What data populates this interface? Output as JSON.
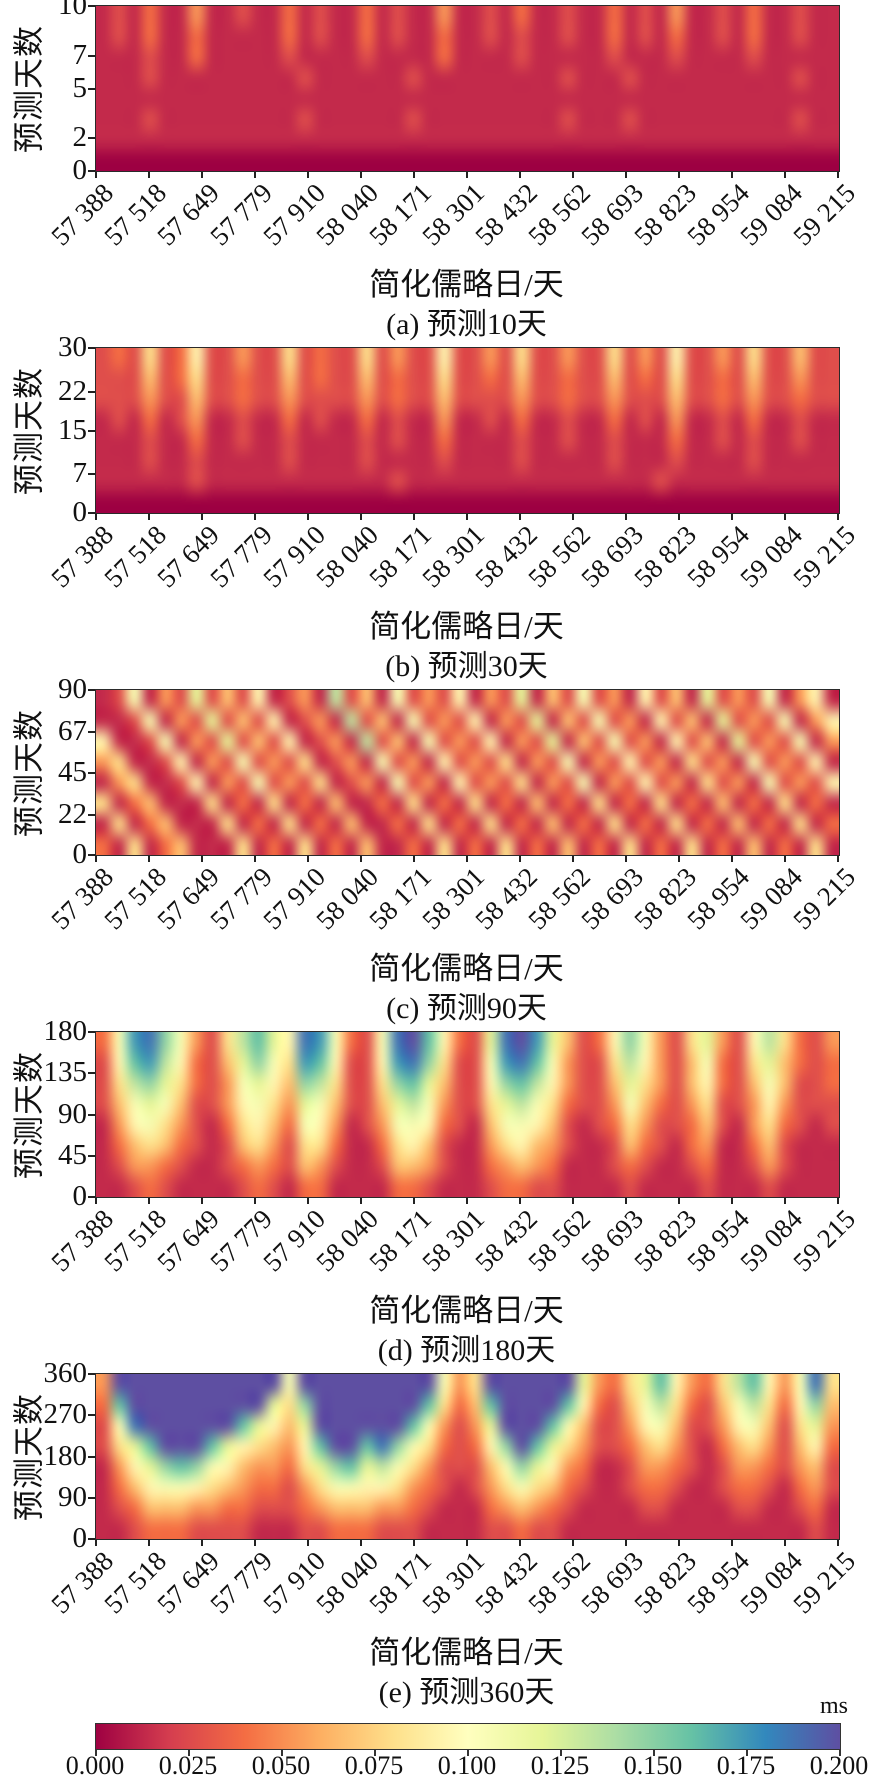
{
  "chart_data": {
    "type": "heatmap",
    "figure_kind": "five stacked prediction-error heatmap panels sharing one colorbar",
    "value_unit": "ms",
    "value_range": [
      0.0,
      0.2
    ],
    "colormap": "Spectral",
    "colormap_stops": [
      {
        "t": 0.0,
        "color": "#9e0142"
      },
      {
        "t": 0.1,
        "color": "#d53e4f"
      },
      {
        "t": 0.2,
        "color": "#f46d43"
      },
      {
        "t": 0.3,
        "color": "#fdae61"
      },
      {
        "t": 0.4,
        "color": "#fee08b"
      },
      {
        "t": 0.5,
        "color": "#ffffbf"
      },
      {
        "t": 0.6,
        "color": "#e6f598"
      },
      {
        "t": 0.7,
        "color": "#abdda4"
      },
      {
        "t": 0.8,
        "color": "#66c2a5"
      },
      {
        "t": 0.9,
        "color": "#3288bd"
      },
      {
        "t": 1.0,
        "color": "#5e4fa2"
      }
    ],
    "x": {
      "label": "简化儒略日/天",
      "range_mjd": [
        57388,
        59215
      ],
      "tick_labels": [
        "57 388",
        "57 518",
        "57 649",
        "57 779",
        "57 910",
        "58 040",
        "58 171",
        "58 301",
        "58 432",
        "58 562",
        "58 693",
        "58 823",
        "58 954",
        "59 084",
        "59 215"
      ]
    },
    "y": {
      "label": "预测天数"
    },
    "colorbar": {
      "unit": "ms",
      "tick_labels": [
        "0.000",
        "0.025",
        "0.050",
        "0.075",
        "0.100",
        "0.125",
        "0.150",
        "0.175",
        "0.200"
      ]
    },
    "grid_encoding": {
      "scheme": "each row is a 48-char hex string; digit 0-F maps linearly to 0.000-0.200 ms; row 0 = top of panel (max prediction days), row 7 = bottom (0 days)",
      "cols": 48,
      "rows": 8
    },
    "panels": [
      {
        "key": "a",
        "caption": "(a) 预测10天",
        "horizon_days": 10,
        "y_max": 10,
        "y_tick_values": [
          0,
          2,
          5,
          7,
          10
        ],
        "rows": [
          "121311411211312113121141121311211312141121311211",
          "121311311111312113121131121211211312131121311211",
          "111211311111211112111131111211111211121111211111",
          "111211111111121111112111111111211121111111111211",
          "111111111111111111111111111111111111111111111111",
          "111211111111121111112111111111211121111111111211",
          "111111111111111111111111111111111111111111111111",
          "000000000000000000000000000000000000000000000000"
        ]
      },
      {
        "key": "b",
        "caption": "(b) 预测30天",
        "horizon_days": 30,
        "y_max": 30,
        "y_tick_values": [
          0,
          7,
          15,
          22,
          30
        ],
        "rows": [
          "232623722422623226242272242622422624272242622522",
          "222523622322523225232262232522322523262232522422",
          "222422522322422224232252222422322422252232422322",
          "121312411211312113121141121311211312141121311211",
          "111211311211211112121131111211211211131121211211",
          "111211211111211112111121111211111211121111211111",
          "111111211111111111121111111111111111211111111111",
          "000000000000000000000000000000000000000000000000"
        ]
      },
      {
        "key": "c",
        "caption": "(c) 预测90天",
        "horizon_days": 90,
        "y_max": 90,
        "y_tick_values": [
          0,
          22,
          45,
          67,
          90
        ],
        "rows": [
          "128142925271241A25182427142915282417251924281471",
          "1128142925271241A2518242714291528241725192428147",
          "71128142925271241A251824271429152824172519242814",
          "461127142824261241824172426142814272416241824271",
          "146112714282426124182417242614281427241624182427",
          "613511161316131511316131613151316131613151316131",
          "161351116131613151131613161315131613161315131613",
          "316135111613161315113161316131513161316131513161"
        ]
      },
      {
        "key": "d",
        "caption": "(d) 预测180天",
        "horizon_days": 180,
        "y_max": 180,
        "y_tick_values": [
          0,
          45,
          90,
          135,
          180
        ],
        "rows": [
          "38DEB8426AC97ED8328EFC7329EFD95237B84269427A6324",
          "27CDA73259B86DC7227DEB6228DEC84226A7425832695323",
          "26AB963248975BA6226BC95227BCA7422596425732585223",
          "25898522478649852259A842269A86322485324622474222",
          "147864213675387412488732158875212364223521463212",
          "135653212564266311367521146754211253213411352111",
          "124432112343254211255421134543111232112311242111",
          "112321111232133111133211123322111121111211121111"
        ]
      },
      {
        "key": "e",
        "caption": "(e) 预测360天",
        "horizon_days": 360,
        "y_max": 360,
        "y_tick_values": [
          0,
          90,
          180,
          270,
          360
        ],
        "rows": [
          "4FFFFFFFFFFF8FFFFFFFFF846FFFFFF94369C7436AC748E6",
          "3CFFFFFFFFF96BFFFFFFFC635CFFFFC73258A63258A637B5",
          "28EFFFFFFC9759FFFFFFC84249FFFC852247852247852694",
          "269CFFFC976547CFFCEB863237BFC9642235642135642573",
          "1479BCB87544369BC9A86422258B97431124432124432452",
          "135788765433246887764321246865321123321123321342",
          "123555443322234555443211134543211112211112211231",
          "112333222211122333222111122322111111111111111121"
        ]
      }
    ]
  }
}
